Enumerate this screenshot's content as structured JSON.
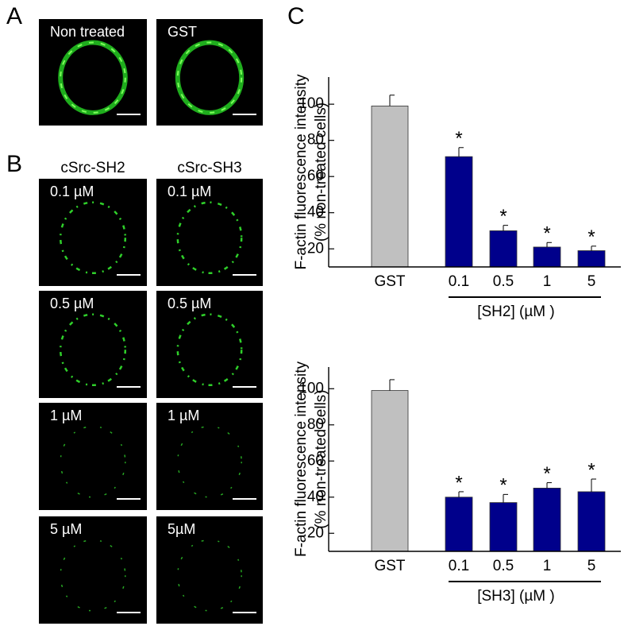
{
  "panels": {
    "a": "A",
    "b": "B",
    "c": "C"
  },
  "panel_a": {
    "images": [
      "Non treated",
      "GST"
    ]
  },
  "panel_b": {
    "columns": [
      "cSrc-SH2",
      "cSrc-SH3"
    ],
    "images": [
      [
        "0.1 µM",
        "0.1 µM"
      ],
      [
        "0.5 µM",
        "0.5 µM"
      ],
      [
        "1 µM",
        "1 µM"
      ],
      [
        "5 µM",
        "5µM"
      ]
    ]
  },
  "chart_data": [
    {
      "type": "bar",
      "y_label": [
        "F-actin fluorescence intensity",
        "(% non-treated cells)"
      ],
      "categories": [
        "GST",
        "0.1",
        "0.5",
        "1",
        "5"
      ],
      "group_label": "[SH2] (µM )",
      "values": [
        99,
        71,
        30,
        21,
        19
      ],
      "errors": [
        6,
        5,
        3,
        2.5,
        2.5
      ],
      "significance": [
        null,
        "*",
        "*",
        "*",
        "*"
      ],
      "colors": [
        "#c0c0c0",
        "#00008b",
        "#00008b",
        "#00008b",
        "#00008b"
      ],
      "ylim": [
        10,
        115
      ],
      "yticks": [
        20,
        40,
        60,
        80,
        100
      ]
    },
    {
      "type": "bar",
      "y_label": [
        "F-actin fluorescence intensity",
        "(% non-treated cells)"
      ],
      "categories": [
        "GST",
        "0.1",
        "0.5",
        "1",
        "5"
      ],
      "group_label": "[SH3] (µM )",
      "values": [
        99,
        40,
        37,
        45,
        43
      ],
      "errors": [
        6,
        3,
        4.5,
        3,
        7
      ],
      "significance": [
        null,
        "*",
        "*",
        "*",
        "*"
      ],
      "colors": [
        "#c0c0c0",
        "#00008b",
        "#00008b",
        "#00008b",
        "#00008b"
      ],
      "ylim": [
        10,
        112
      ],
      "yticks": [
        20,
        40,
        60,
        80,
        100
      ]
    }
  ]
}
